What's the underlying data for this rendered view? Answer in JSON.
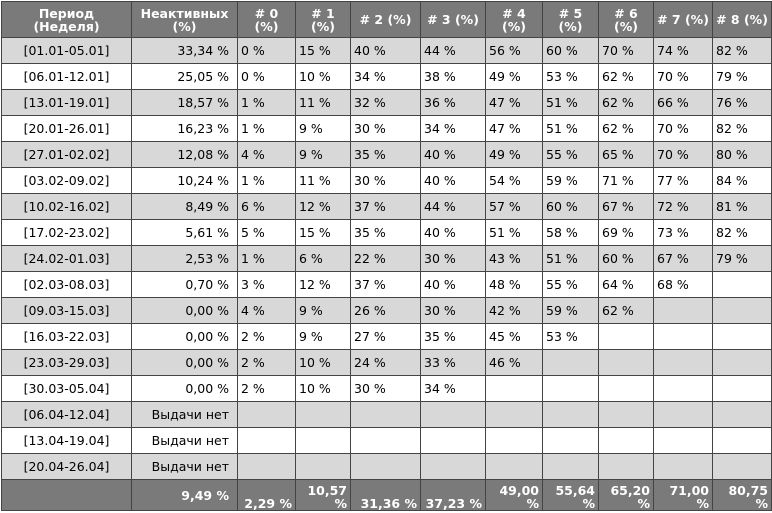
{
  "headers": {
    "period": "Период (Неделя)",
    "inactive": "Неактивных (%)",
    "weeks": [
      "# 0 (%)",
      "# 1 (%)",
      "# 2 (%)",
      "# 3 (%)",
      "# 4 (%)",
      "# 5 (%)",
      "# 6 (%)",
      "# 7 (%)",
      "# 8 (%)"
    ]
  },
  "rows": [
    {
      "period": "[01.01-05.01]",
      "inactive": "33,34 %",
      "cells": [
        "0 %",
        "15 %",
        "40 %",
        "44 %",
        "56 %",
        "60 %",
        "70 %",
        "74 %",
        "82 %"
      ]
    },
    {
      "period": "[06.01-12.01]",
      "inactive": "25,05 %",
      "cells": [
        "0 %",
        "10 %",
        "34 %",
        "38 %",
        "49 %",
        "53 %",
        "62 %",
        "70 %",
        "79 %"
      ]
    },
    {
      "period": "[13.01-19.01]",
      "inactive": "18,57 %",
      "cells": [
        "1 %",
        "11 %",
        "32 %",
        "36 %",
        "47 %",
        "51 %",
        "62 %",
        "66 %",
        "76 %"
      ]
    },
    {
      "period": "[20.01-26.01]",
      "inactive": "16,23 %",
      "cells": [
        "1 %",
        "9 %",
        "30 %",
        "34 %",
        "47 %",
        "51 %",
        "62 %",
        "70 %",
        "82 %"
      ]
    },
    {
      "period": "[27.01-02.02]",
      "inactive": "12,08 %",
      "cells": [
        "4 %",
        "9 %",
        "35 %",
        "40 %",
        "49 %",
        "55 %",
        "65 %",
        "70 %",
        "80 %"
      ]
    },
    {
      "period": "[03.02-09.02]",
      "inactive": "10,24 %",
      "cells": [
        "1 %",
        "11 %",
        "30 %",
        "40 %",
        "54 %",
        "59 %",
        "71 %",
        "77 %",
        "84 %"
      ]
    },
    {
      "period": "[10.02-16.02]",
      "inactive": "8,49 %",
      "cells": [
        "6 %",
        "12 %",
        "37 %",
        "44 %",
        "57 %",
        "60 %",
        "67 %",
        "72 %",
        "81 %"
      ]
    },
    {
      "period": "[17.02-23.02]",
      "inactive": "5,61 %",
      "cells": [
        "5 %",
        "15 %",
        "35 %",
        "40 %",
        "51 %",
        "58 %",
        "69 %",
        "73 %",
        "82 %"
      ]
    },
    {
      "period": "[24.02-01.03]",
      "inactive": "2,53 %",
      "cells": [
        "1 %",
        "6 %",
        "22 %",
        "30 %",
        "43 %",
        "51 %",
        "60 %",
        "67 %",
        "79 %"
      ]
    },
    {
      "period": "[02.03-08.03]",
      "inactive": "0,70 %",
      "cells": [
        "3 %",
        "12 %",
        "37 %",
        "40 %",
        "48 %",
        "55 %",
        "64 %",
        "68 %",
        ""
      ]
    },
    {
      "period": "[09.03-15.03]",
      "inactive": "0,00 %",
      "cells": [
        "4 %",
        "9 %",
        "26 %",
        "30 %",
        "42 %",
        "59 %",
        "62 %",
        "",
        ""
      ]
    },
    {
      "period": "[16.03-22.03]",
      "inactive": "0,00 %",
      "cells": [
        "2 %",
        "9 %",
        "27 %",
        "35 %",
        "45 %",
        "53 %",
        "",
        "",
        ""
      ]
    },
    {
      "period": "[23.03-29.03]",
      "inactive": "0,00 %",
      "cells": [
        "2 %",
        "10 %",
        "24 %",
        "33 %",
        "46 %",
        "",
        "",
        "",
        ""
      ]
    },
    {
      "period": "[30.03-05.04]",
      "inactive": "0,00 %",
      "cells": [
        "2 %",
        "10 %",
        "30 %",
        "34 %",
        "",
        "",
        "",
        "",
        ""
      ]
    },
    {
      "period": "[06.04-12.04]",
      "inactive": "Выдачи нет",
      "cells": [
        "",
        "",
        "",
        "",
        "",
        "",
        "",
        "",
        ""
      ]
    },
    {
      "period": "[13.04-19.04]",
      "inactive": "Выдачи нет",
      "cells": [
        "",
        "",
        "",
        "",
        "",
        "",
        "",
        "",
        ""
      ]
    },
    {
      "period": "[20.04-26.04]",
      "inactive": "Выдачи нет",
      "cells": [
        "",
        "",
        "",
        "",
        "",
        "",
        "",
        "",
        ""
      ]
    }
  ],
  "totals": {
    "period": "",
    "inactive": "9,49 %",
    "cells": [
      "2,29 %",
      "10,57 %",
      "31,36 %",
      "37,23 %",
      "49,00 %",
      "55,64 %",
      "65,20 %",
      "71,00 %",
      "80,75 %"
    ]
  }
}
